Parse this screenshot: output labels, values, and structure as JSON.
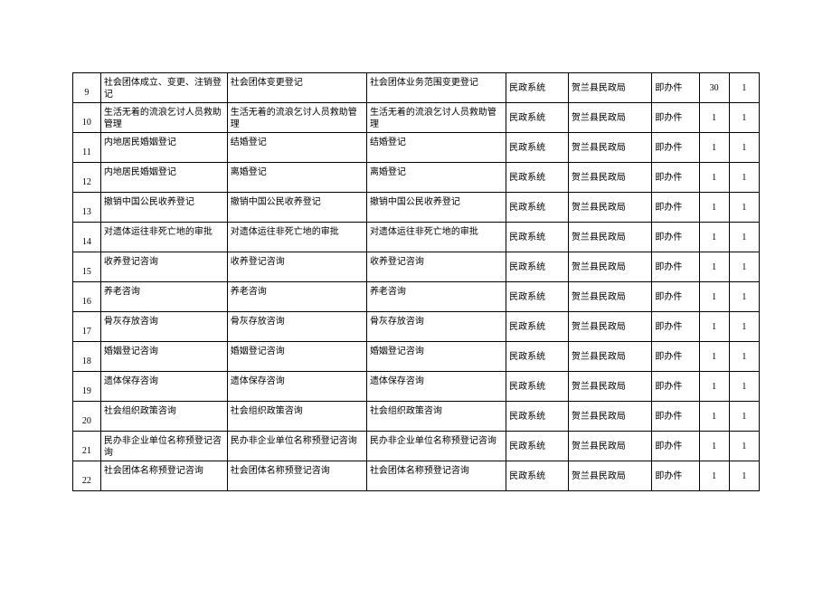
{
  "table": {
    "rows": [
      {
        "idx": 9,
        "name1": "社会团体成立、变更、注销登记",
        "name2": "社会团体变更登记",
        "name3": "社会团体业务范围变更登记",
        "sys": "民政系统",
        "dept": "贺兰县民政局",
        "type": "即办件",
        "n1": "30",
        "n2": "1"
      },
      {
        "idx": 10,
        "name1": "生活无着的流浪乞讨人员救助管理",
        "name2": "生活无着的流浪乞讨人员救助管理",
        "name3": "生活无着的流浪乞讨人员救助管理",
        "sys": "民政系统",
        "dept": "贺兰县民政局",
        "type": "即办件",
        "n1": "1",
        "n2": "1"
      },
      {
        "idx": 11,
        "name1": "内地居民婚姻登记",
        "name2": "结婚登记",
        "name3": "结婚登记",
        "sys": "民政系统",
        "dept": "贺兰县民政局",
        "type": "即办件",
        "n1": "1",
        "n2": "1"
      },
      {
        "idx": 12,
        "name1": "内地居民婚姻登记",
        "name2": "离婚登记",
        "name3": "离婚登记",
        "sys": "民政系统",
        "dept": "贺兰县民政局",
        "type": "即办件",
        "n1": "1",
        "n2": "1"
      },
      {
        "idx": 13,
        "name1": "撤销中国公民收养登记",
        "name2": "撤销中国公民收养登记",
        "name3": "撤销中国公民收养登记",
        "sys": "民政系统",
        "dept": "贺兰县民政局",
        "type": "即办件",
        "n1": "1",
        "n2": "1"
      },
      {
        "idx": 14,
        "name1": "对遗体运往非死亡地的审批",
        "name2": "对遗体运往非死亡地的审批",
        "name3": "对遗体运往非死亡地的审批",
        "sys": "民政系统",
        "dept": "贺兰县民政局",
        "type": "即办件",
        "n1": "1",
        "n2": "1"
      },
      {
        "idx": 15,
        "name1": "收养登记咨询",
        "name2": "收养登记咨询",
        "name3": "收养登记咨询",
        "sys": "民政系统",
        "dept": "贺兰县民政局",
        "type": "即办件",
        "n1": "1",
        "n2": "1"
      },
      {
        "idx": 16,
        "name1": "养老咨询",
        "name2": "养老咨询",
        "name3": "养老咨询",
        "sys": "民政系统",
        "dept": "贺兰县民政局",
        "type": "即办件",
        "n1": "1",
        "n2": "1"
      },
      {
        "idx": 17,
        "name1": "骨灰存放咨询",
        "name2": "骨灰存放咨询",
        "name3": "骨灰存放咨询",
        "sys": "民政系统",
        "dept": "贺兰县民政局",
        "type": "即办件",
        "n1": "1",
        "n2": "1"
      },
      {
        "idx": 18,
        "name1": "婚姻登记咨询",
        "name2": "婚姻登记咨询",
        "name3": "婚姻登记咨询",
        "sys": "民政系统",
        "dept": "贺兰县民政局",
        "type": "即办件",
        "n1": "1",
        "n2": "1"
      },
      {
        "idx": 19,
        "name1": "遗体保存咨询",
        "name2": "遗体保存咨询",
        "name3": "遗体保存咨询",
        "sys": "民政系统",
        "dept": "贺兰县民政局",
        "type": "即办件",
        "n1": "1",
        "n2": "1"
      },
      {
        "idx": 20,
        "name1": "社会组织政策咨询",
        "name2": "社会组织政策咨询",
        "name3": "社会组织政策咨询",
        "sys": "民政系统",
        "dept": "贺兰县民政局",
        "type": "即办件",
        "n1": "1",
        "n2": "1"
      },
      {
        "idx": 21,
        "name1": "民办非企业单位名称预登记咨询",
        "name2": "民办非企业单位名称预登记咨询",
        "name3": "民办非企业单位名称预登记咨询",
        "sys": "民政系统",
        "dept": "贺兰县民政局",
        "type": "即办件",
        "n1": "1",
        "n2": "1"
      },
      {
        "idx": 22,
        "name1": "社会团体名称预登记咨询",
        "name2": "社会团体名称预登记咨询",
        "name3": "社会团体名称预登记咨询",
        "sys": "民政系统",
        "dept": "贺兰县民政局",
        "type": "即办件",
        "n1": "1",
        "n2": "1"
      }
    ]
  }
}
